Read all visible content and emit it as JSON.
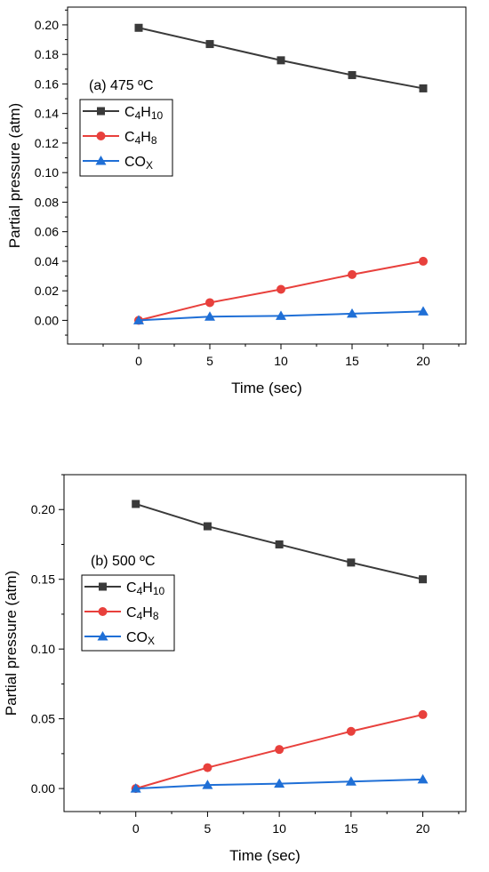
{
  "chart_data": [
    {
      "type": "line",
      "title": "(a) 475 ºC",
      "xlabel": "Time (sec)",
      "ylabel": "Partial pressure (atm)",
      "x": [
        0,
        5,
        10,
        15,
        20
      ],
      "xlim": [
        -5,
        23
      ],
      "ylim": [
        -0.016,
        0.212
      ],
      "xticks": [
        0,
        5,
        10,
        15,
        20
      ],
      "xtick_labels": [
        "0",
        "5",
        "10",
        "15",
        "20"
      ],
      "yticks": [
        0,
        0.02,
        0.04,
        0.06,
        0.08,
        0.1,
        0.12,
        0.14,
        0.16,
        0.18,
        0.2
      ],
      "ytick_labels": [
        "0.00",
        "0.02",
        "0.04",
        "0.06",
        "0.08",
        "0.10",
        "0.12",
        "0.14",
        "0.16",
        "0.18",
        "0.20"
      ],
      "yminor": true,
      "grid": false,
      "legend_position": "upper-left",
      "series": [
        {
          "name": "C4H10",
          "label_parts": [
            [
              "C",
              ""
            ],
            [
              "4",
              "sub"
            ],
            [
              "H",
              ""
            ],
            [
              "10",
              "sub"
            ]
          ],
          "values": [
            0.198,
            0.187,
            0.176,
            0.166,
            0.157
          ],
          "color": "#3a3a3a",
          "marker": "square"
        },
        {
          "name": "C4H8",
          "label_parts": [
            [
              "C",
              ""
            ],
            [
              "4",
              "sub"
            ],
            [
              "H",
              ""
            ],
            [
              "8",
              "sub"
            ]
          ],
          "values": [
            0.0,
            0.012,
            0.021,
            0.031,
            0.04
          ],
          "color": "#e8403c",
          "marker": "circle"
        },
        {
          "name": "COX",
          "label_parts": [
            [
              "CO",
              ""
            ],
            [
              "X",
              "sub"
            ]
          ],
          "values": [
            0.0,
            0.0025,
            0.003,
            0.0045,
            0.006
          ],
          "color": "#1f6fd6",
          "marker": "triangle"
        }
      ]
    },
    {
      "type": "line",
      "title": "(b) 500 ºC",
      "xlabel": "Time (sec)",
      "ylabel": "Partial pressure (atm)",
      "x": [
        0,
        5,
        10,
        15,
        20
      ],
      "xlim": [
        -5,
        23
      ],
      "ylim": [
        -0.0165,
        0.225
      ],
      "xticks": [
        0,
        5,
        10,
        15,
        20
      ],
      "xtick_labels": [
        "0",
        "5",
        "10",
        "15",
        "20"
      ],
      "yticks": [
        0,
        0.05,
        0.1,
        0.15,
        0.2
      ],
      "ytick_labels": [
        "0.00",
        "0.05",
        "0.10",
        "0.15",
        "0.20"
      ],
      "yminor": true,
      "grid": false,
      "legend_position": "upper-left",
      "series": [
        {
          "name": "C4H10",
          "label_parts": [
            [
              "C",
              ""
            ],
            [
              "4",
              "sub"
            ],
            [
              "H",
              ""
            ],
            [
              "10",
              "sub"
            ]
          ],
          "values": [
            0.204,
            0.188,
            0.175,
            0.162,
            0.15
          ],
          "color": "#3a3a3a",
          "marker": "square"
        },
        {
          "name": "C4H8",
          "label_parts": [
            [
              "C",
              ""
            ],
            [
              "4",
              "sub"
            ],
            [
              "H",
              ""
            ],
            [
              "8",
              "sub"
            ]
          ],
          "values": [
            0.0,
            0.015,
            0.028,
            0.041,
            0.053
          ],
          "color": "#e8403c",
          "marker": "circle"
        },
        {
          "name": "COX",
          "label_parts": [
            [
              "CO",
              ""
            ],
            [
              "X",
              "sub"
            ]
          ],
          "values": [
            0.0,
            0.0025,
            0.0035,
            0.005,
            0.0065
          ],
          "color": "#1f6fd6",
          "marker": "triangle"
        }
      ]
    }
  ]
}
